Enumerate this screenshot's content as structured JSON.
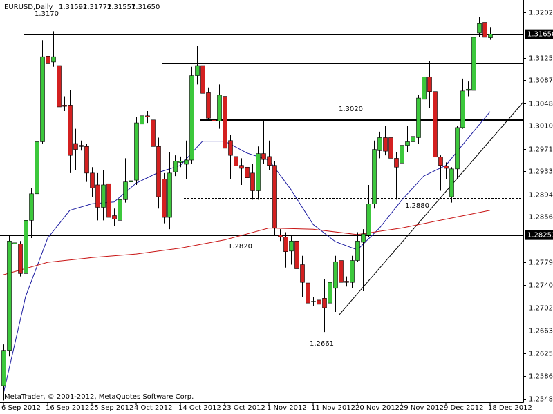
{
  "chart_data": {
    "type": "candlestick",
    "symbol": "EURUSD,Daily",
    "header_values": [
      "1.31592",
      "1.31772",
      "1.31557",
      "1.31650"
    ],
    "footer": "MetaTrader, © 2001-2012, MetaQuotes Software Corp.",
    "categories": [
      "6 Sep 2012",
      null,
      null,
      null,
      null,
      null,
      null,
      null,
      "16 Sep 2012",
      null,
      null,
      null,
      null,
      null,
      null,
      null,
      "25 Sep 2012",
      null,
      null,
      null,
      null,
      null,
      null,
      null,
      "4 Oct 2012",
      null,
      null,
      null,
      null,
      null,
      null,
      null,
      "14 Oct 2012",
      null,
      null,
      null,
      null,
      null,
      null,
      null,
      "23 Oct 2012",
      null,
      null,
      null,
      null,
      null,
      null,
      null,
      "1 Nov 2012",
      null,
      null,
      null,
      null,
      null,
      null,
      null,
      "11 Nov 2012",
      null,
      null,
      null,
      null,
      null,
      null,
      null,
      "20 Nov 2012",
      null,
      null,
      null,
      null,
      null,
      null,
      null,
      "29 Nov 2012",
      null,
      null,
      null,
      null,
      null,
      null,
      null,
      "9 Dec 2012",
      null,
      null,
      null,
      null,
      null,
      null,
      null,
      "18 Dec 2012"
    ],
    "open": [
      1.257,
      1.263,
      1.281,
      1.281,
      1.276,
      1.285,
      1.2895,
      1.2983,
      1.3128,
      1.3118,
      1.3112,
      1.3045,
      1.3045,
      1.298,
      1.2977,
      1.2975,
      1.293,
      1.291,
      1.2872,
      1.2912,
      1.2858,
      1.285,
      1.2885,
      1.2915,
      1.2918,
      1.3013,
      1.3027,
      1.302,
      1.2975,
      1.292,
      1.2855,
      1.2932,
      1.2948,
      1.2945,
      1.2952,
      1.3095,
      1.3112,
      1.3066,
      1.302,
      1.3018,
      1.306,
      1.2985,
      1.2958,
      1.2943,
      1.294,
      1.293,
      1.29,
      1.2963,
      1.2958,
      1.2943,
      1.2825,
      1.2822,
      1.2798,
      1.2815,
      1.2775,
      1.2744,
      1.2712,
      1.2715,
      1.2718,
      1.271,
      1.2735,
      1.2782,
      1.2747,
      1.2745,
      1.2782,
      1.2813,
      1.2825,
      1.2878,
      1.2968,
      1.299,
      1.299,
      1.2955,
      1.2947,
      1.2977,
      1.2983,
      1.299,
      1.3055,
      1.3093,
      1.3068,
      1.2957,
      1.2942,
      1.289,
      1.2937,
      1.3007,
      1.307,
      1.307,
      1.3167,
      1.3185,
      1.31592
    ],
    "high": [
      1.264,
      1.2825,
      1.2818,
      1.2815,
      1.286,
      1.2905,
      1.3015,
      1.3155,
      1.316,
      1.317,
      1.312,
      1.306,
      1.307,
      1.3005,
      1.2985,
      1.298,
      1.294,
      1.293,
      1.2935,
      1.2945,
      1.287,
      1.2895,
      1.2955,
      1.2925,
      1.3025,
      1.307,
      1.3035,
      1.3045,
      1.299,
      1.293,
      1.2965,
      1.296,
      1.2958,
      1.2985,
      1.311,
      1.3145,
      1.313,
      1.3075,
      1.3025,
      1.308,
      1.3065,
      1.2995,
      1.297,
      1.2955,
      1.2955,
      1.2945,
      1.2975,
      1.302,
      1.2985,
      1.295,
      1.2835,
      1.283,
      1.2825,
      1.283,
      1.279,
      1.275,
      1.272,
      1.2725,
      1.275,
      1.277,
      1.279,
      1.279,
      1.2755,
      1.279,
      1.283,
      1.2835,
      1.291,
      1.2985,
      1.3,
      1.301,
      1.3005,
      1.2965,
      1.3,
      1.301,
      1.3005,
      1.3062,
      1.3112,
      1.312,
      1.3075,
      1.296,
      1.2948,
      1.294,
      1.301,
      1.309,
      1.3085,
      1.3165,
      1.3195,
      1.3192,
      1.31772
    ],
    "low": [
      1.2545,
      1.262,
      1.2805,
      1.2755,
      1.2755,
      1.282,
      1.289,
      1.298,
      1.31,
      1.311,
      1.303,
      1.3035,
      1.293,
      1.2935,
      1.2968,
      1.2915,
      1.289,
      1.285,
      1.285,
      1.284,
      1.284,
      1.282,
      1.288,
      1.2908,
      1.291,
      1.2995,
      1.3015,
      1.296,
      1.287,
      1.2845,
      1.2835,
      1.2925,
      1.294,
      1.292,
      1.2945,
      1.308,
      1.305,
      1.302,
      1.3012,
      1.3005,
      1.2955,
      1.292,
      1.2905,
      1.291,
      1.288,
      1.2885,
      1.2885,
      1.2945,
      1.2935,
      1.2825,
      1.2815,
      1.277,
      1.2775,
      1.2765,
      1.272,
      1.2695,
      1.2705,
      1.2695,
      1.2661,
      1.27,
      1.2695,
      1.2725,
      1.2738,
      1.2735,
      1.278,
      1.273,
      1.2822,
      1.287,
      1.2955,
      1.296,
      1.295,
      1.2885,
      1.2935,
      1.2965,
      1.2975,
      1.298,
      1.305,
      1.304,
      1.2945,
      1.29,
      1.292,
      1.288,
      1.292,
      1.3005,
      1.306,
      1.3065,
      1.316,
      1.3145,
      1.31557
    ],
    "close": [
      1.263,
      1.2815,
      1.2812,
      1.276,
      1.285,
      1.2895,
      1.2983,
      1.3127,
      1.3115,
      1.3127,
      1.3042,
      1.3043,
      1.296,
      1.297,
      1.2975,
      1.293,
      1.2905,
      1.2872,
      1.291,
      1.2855,
      1.2852,
      1.2885,
      1.2915,
      1.2917,
      1.3015,
      1.3027,
      1.3025,
      1.2975,
      1.289,
      1.2855,
      1.293,
      1.295,
      1.295,
      1.2952,
      1.3095,
      1.3112,
      1.3065,
      1.3023,
      1.3018,
      1.3062,
      1.2972,
      1.296,
      1.2942,
      1.2938,
      1.2922,
      1.29,
      1.2963,
      1.2953,
      1.2943,
      1.2837,
      1.2822,
      1.2797,
      1.2815,
      1.2768,
      1.2745,
      1.271,
      1.2713,
      1.2708,
      1.2702,
      1.2745,
      1.278,
      1.2745,
      1.2745,
      1.2782,
      1.2815,
      1.2827,
      1.2878,
      1.297,
      1.299,
      1.2967,
      1.2955,
      1.294,
      1.2977,
      1.2983,
      1.2992,
      1.3057,
      1.3093,
      1.3068,
      1.2957,
      1.2943,
      1.2938,
      1.2937,
      1.3007,
      1.3069,
      1.3072,
      1.316,
      1.3183,
      1.316,
      1.3165
    ],
    "bull_color": "#3cc83c",
    "bear_color": "#d42020",
    "moving_averages": [
      {
        "color": "#1a1aa0",
        "x": [
          0,
          4,
          8,
          12,
          16,
          20,
          24,
          28,
          32,
          36,
          40,
          44,
          48,
          52,
          56,
          60,
          64,
          68,
          72,
          76,
          80,
          84,
          88
        ],
        "values": [
          1.2557,
          1.2721,
          1.282,
          1.2867,
          1.2878,
          1.2881,
          1.2913,
          1.2931,
          1.2943,
          1.2984,
          1.2984,
          1.2964,
          1.2952,
          1.2902,
          1.2843,
          1.2814,
          1.28,
          1.2837,
          1.2884,
          1.2925,
          1.2943,
          1.2989,
          1.3034
        ]
      },
      {
        "color": "#c81414",
        "x": [
          0,
          8,
          16,
          24,
          32,
          40,
          48,
          56,
          64,
          72,
          80,
          88
        ],
        "values": [
          1.2758,
          1.2779,
          1.2787,
          1.2793,
          1.2803,
          1.2817,
          1.2837,
          1.2835,
          1.2826,
          1.2837,
          1.2852,
          1.2867
        ]
      }
    ],
    "levels": [
      1.3165,
      1.3115,
      1.302,
      1.2888,
      1.2825,
      1.269
    ],
    "annotations": [
      "1.3170",
      "1.3020",
      "1.2880",
      "1.2820",
      "1.2661"
    ],
    "price_labels": [
      {
        "value": 1.3165,
        "label": "1.31650"
      },
      {
        "value": 1.28251,
        "label": "1.28251"
      }
    ],
    "ylim": [
      1.2542,
      1.3223
    ],
    "yticks": [
      {
        "value": 1.3202,
        "label": "1.32020"
      },
      {
        "value": 1.3125,
        "label": "1.31250"
      },
      {
        "value": 1.3087,
        "label": "1.30870"
      },
      {
        "value": 1.3048,
        "label": "1.30480"
      },
      {
        "value": 1.301,
        "label": "1.30100"
      },
      {
        "value": 1.2971,
        "label": "1.29710"
      },
      {
        "value": 1.2933,
        "label": "1.29330"
      },
      {
        "value": 1.2894,
        "label": "1.28940"
      },
      {
        "value": 1.2856,
        "label": "1.28560"
      },
      {
        "value": 1.2779,
        "label": "1.27790"
      },
      {
        "value": 1.274,
        "label": "1.27400"
      },
      {
        "value": 1.2702,
        "label": "1.27020"
      },
      {
        "value": 1.2663,
        "label": "1.26630"
      },
      {
        "value": 1.2625,
        "label": "1.26250"
      },
      {
        "value": 1.2586,
        "label": "1.25860"
      },
      {
        "value": 1.2548,
        "label": "1.25480"
      }
    ]
  }
}
